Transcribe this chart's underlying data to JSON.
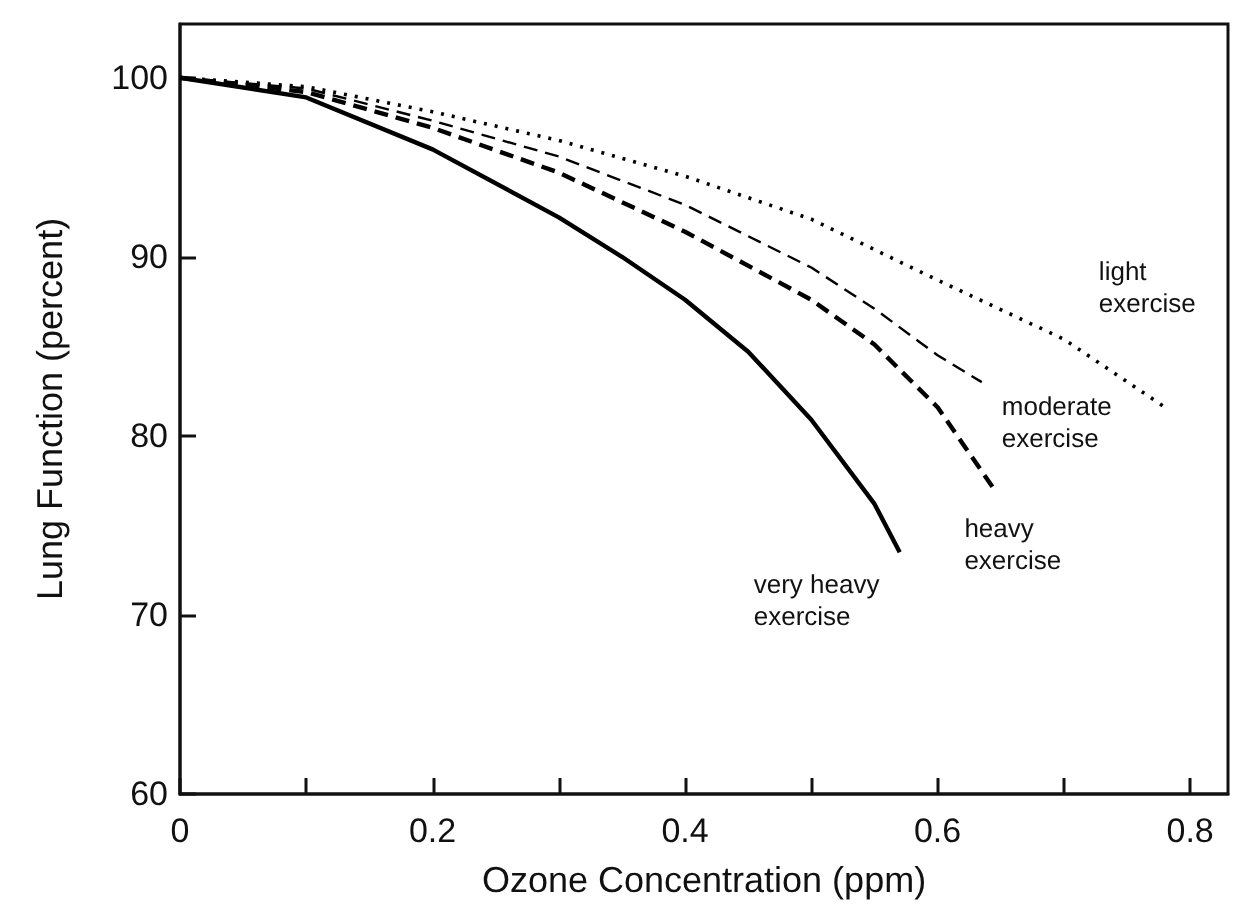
{
  "chart_data": {
    "type": "line",
    "xlabel": "Ozone Concentration (ppm)",
    "ylabel": "Lung Function (percent)",
    "xlim": [
      0,
      0.83
    ],
    "ylim": [
      60,
      103
    ],
    "xticks": [
      0,
      {
        "value": 0.1,
        "label": null
      },
      0.2,
      {
        "value": 0.3,
        "label": null
      },
      0.4,
      {
        "value": 0.5,
        "label": null
      },
      0.6,
      {
        "value": 0.7,
        "label": null
      },
      0.8
    ],
    "yticks": [
      60,
      70,
      80,
      90,
      100
    ],
    "grid": false,
    "legend": false,
    "marker": "none",
    "series": [
      {
        "name": "very heavy exercise",
        "color": "#000000",
        "line_style": "solid",
        "x": [
          0,
          0.1,
          0.2,
          0.3,
          0.35,
          0.4,
          0.45,
          0.5,
          0.55,
          0.57
        ],
        "values": [
          100,
          98.9,
          96.0,
          92.2,
          90.0,
          87.6,
          84.7,
          80.9,
          76.2,
          73.5
        ]
      },
      {
        "name": "heavy exercise",
        "color": "#000000",
        "line_style": "dashed",
        "x": [
          0,
          0.1,
          0.2,
          0.3,
          0.4,
          0.5,
          0.55,
          0.6,
          0.645
        ],
        "values": [
          100,
          99.2,
          97.2,
          94.7,
          91.4,
          87.6,
          85.1,
          81.6,
          77.0
        ]
      },
      {
        "name": "moderate exercise",
        "color": "#000000",
        "line_style": "dashed",
        "x": [
          0,
          0.1,
          0.2,
          0.3,
          0.4,
          0.5,
          0.55,
          0.6,
          0.635
        ],
        "values": [
          100,
          99.4,
          97.6,
          95.6,
          92.9,
          89.4,
          87.1,
          84.5,
          83.0
        ]
      },
      {
        "name": "light exercise",
        "color": "#000000",
        "line_style": "dotted",
        "x": [
          0,
          0.1,
          0.2,
          0.3,
          0.4,
          0.5,
          0.6,
          0.7,
          0.78
        ],
        "values": [
          100,
          99.5,
          98.1,
          96.5,
          94.5,
          92.1,
          88.7,
          85.4,
          81.6
        ]
      }
    ]
  }
}
